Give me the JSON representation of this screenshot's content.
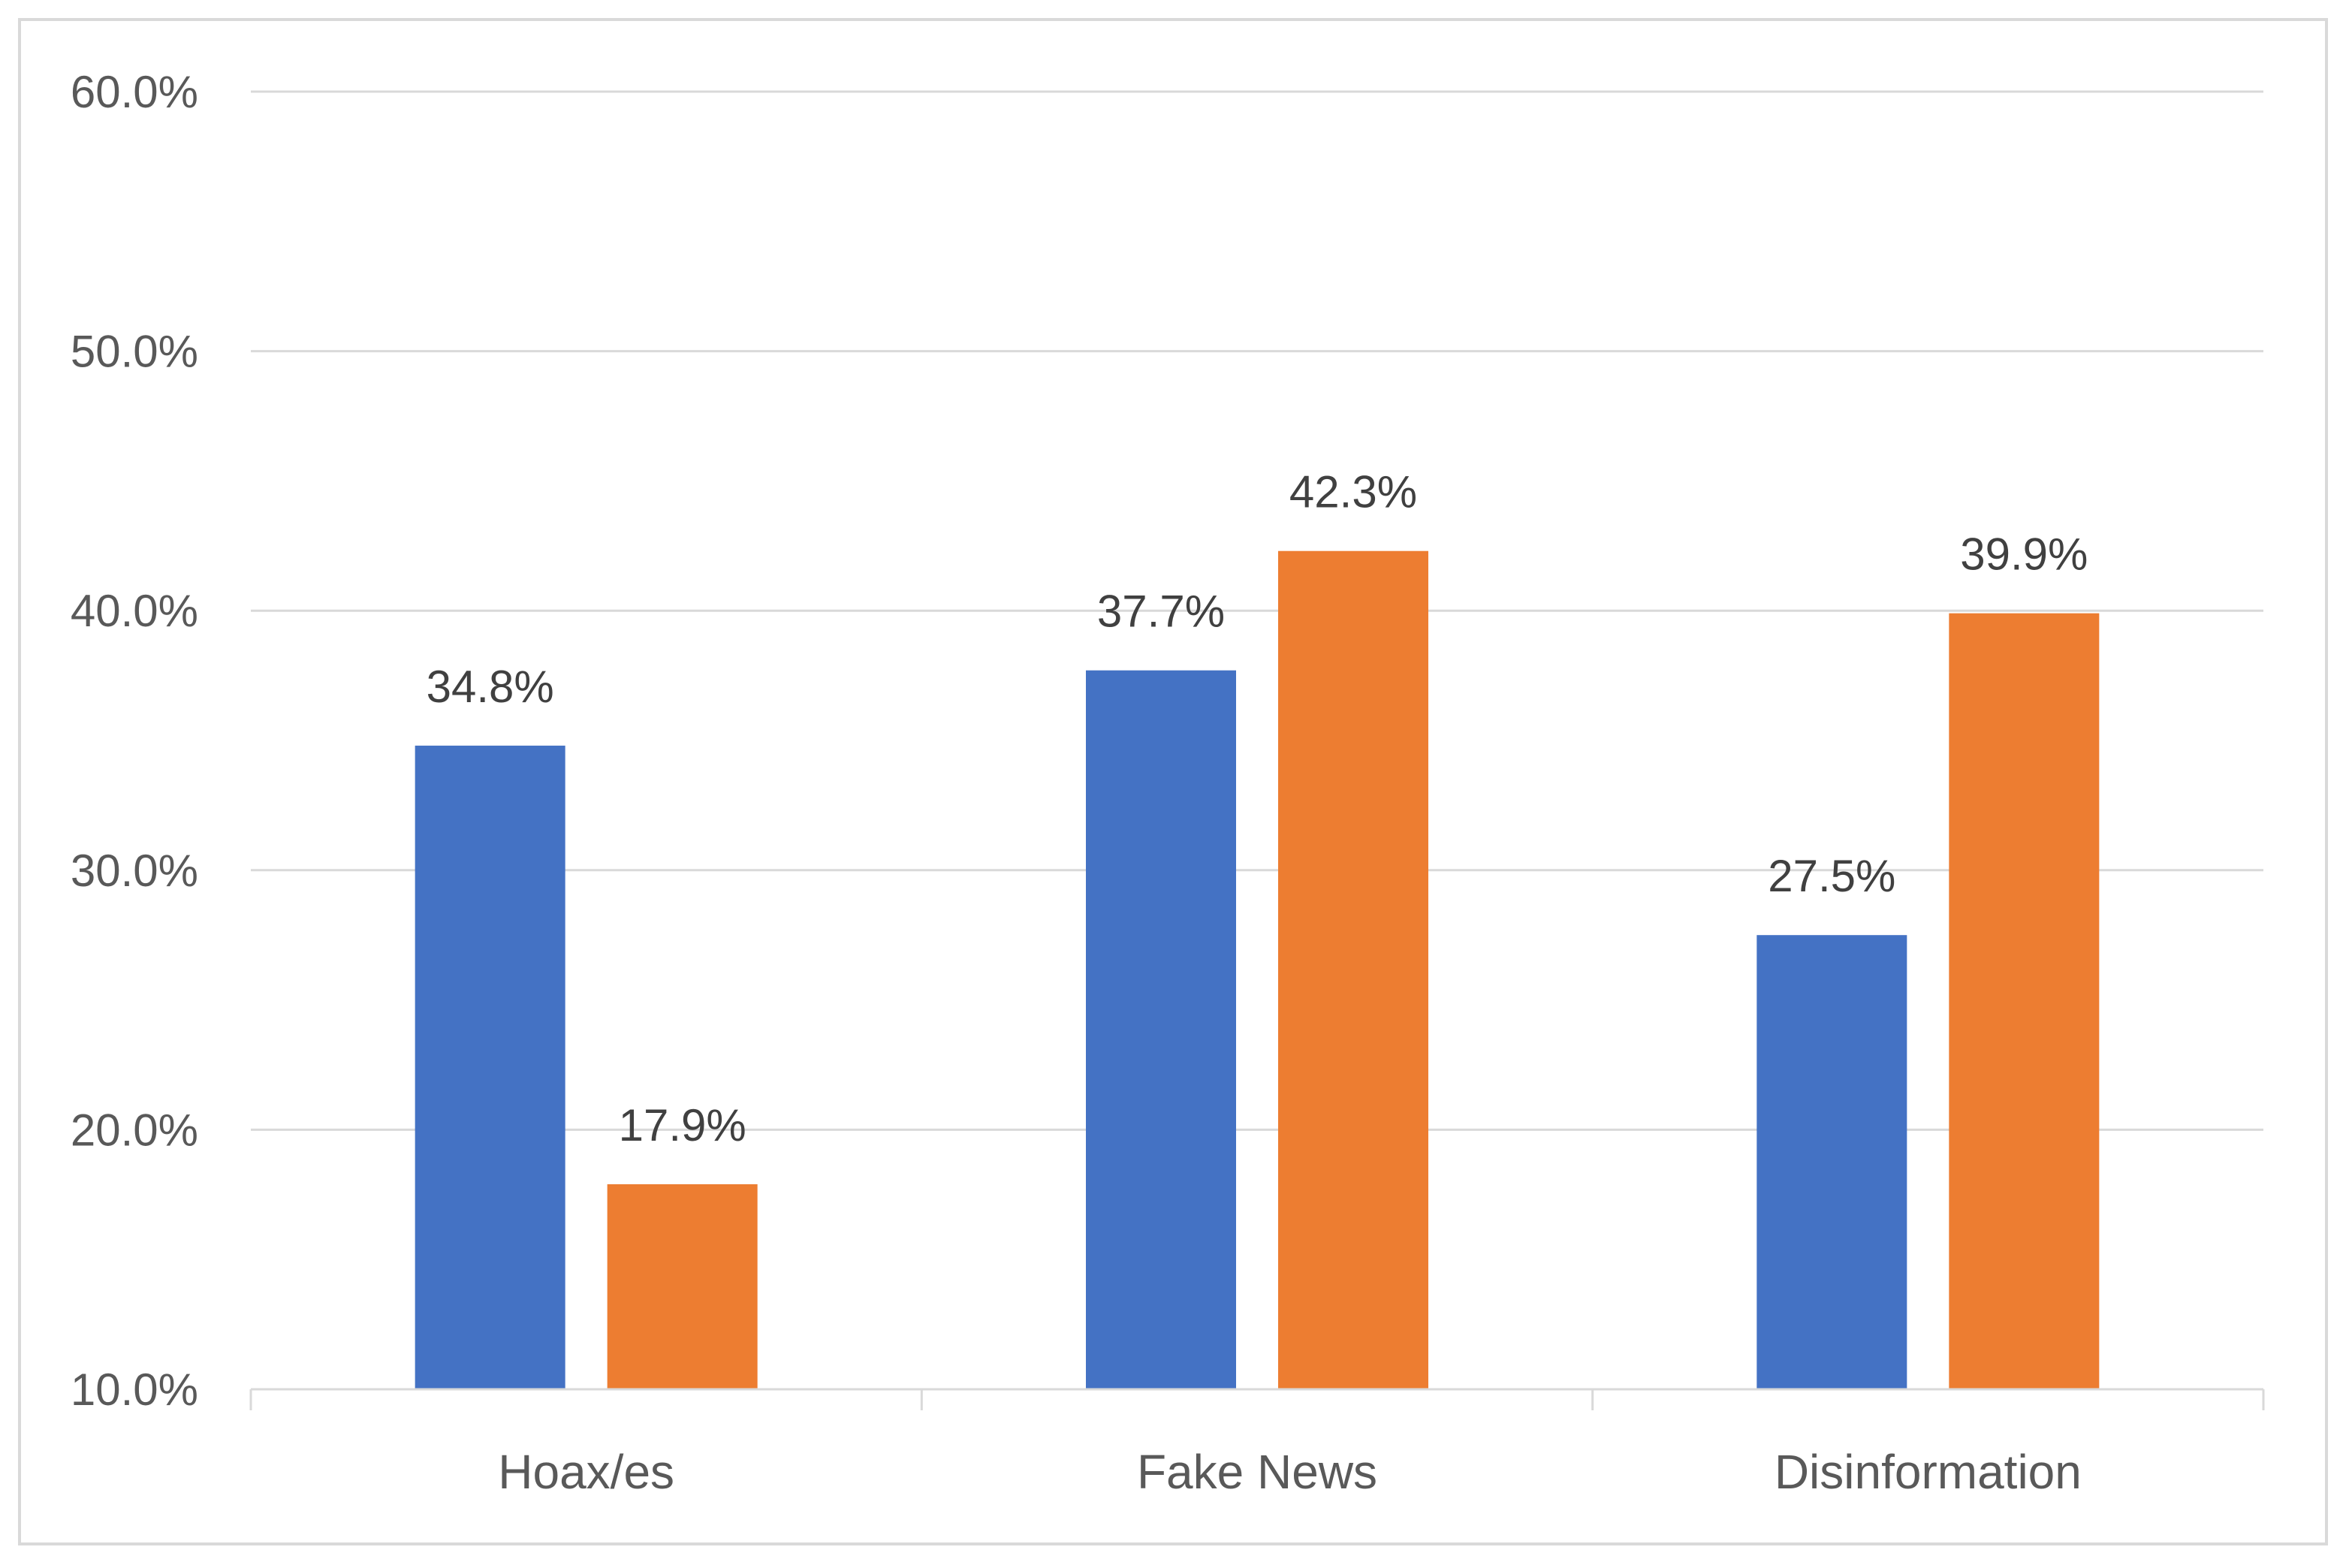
{
  "chart_data": {
    "type": "bar",
    "categories": [
      "Hoax/es",
      "Fake News",
      "Disinformation"
    ],
    "series": [
      {
        "values": [
          34.8,
          37.7,
          27.5
        ],
        "labels": [
          "34.8%",
          "37.7%",
          "27.5%"
        ],
        "color": "#4472C4"
      },
      {
        "values": [
          17.9,
          42.3,
          39.9
        ],
        "labels": [
          "17.9%",
          "42.3%",
          "39.9%"
        ],
        "color": "#ED7D31"
      }
    ],
    "ylim": [
      10,
      60
    ],
    "yticks": [
      10,
      20,
      30,
      40,
      50,
      60
    ],
    "ytick_labels": [
      "10.0%",
      "20.0%",
      "30.0%",
      "40.0%",
      "50.0%",
      "60.0%"
    ],
    "grid": true,
    "title": "",
    "xlabel": "",
    "ylabel": ""
  }
}
